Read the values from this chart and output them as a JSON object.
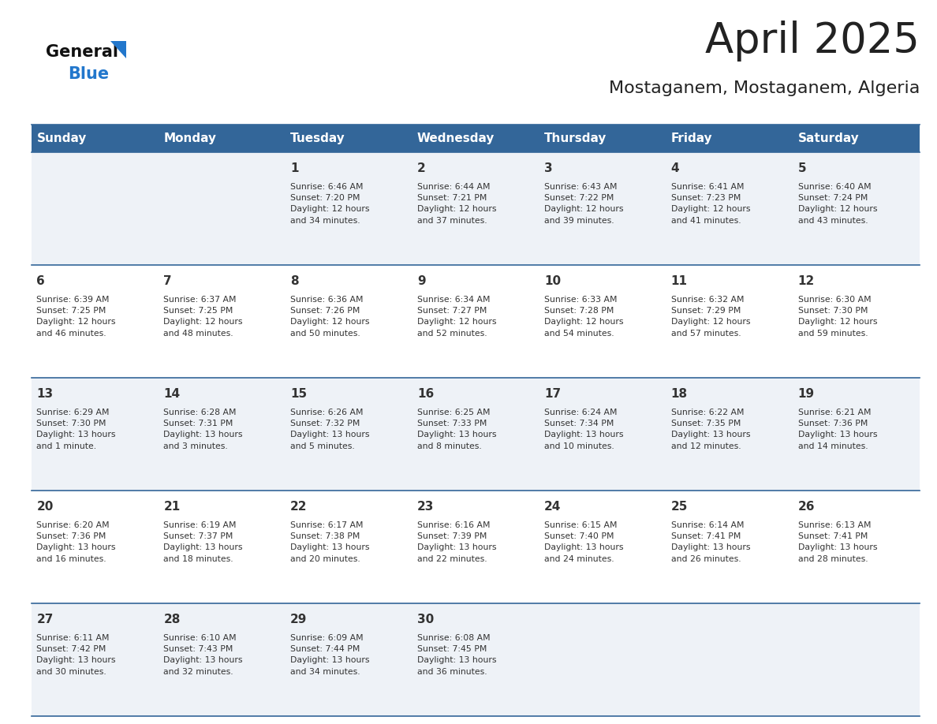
{
  "title": "April 2025",
  "subtitle": "Mostaganem, Mostaganem, Algeria",
  "days_of_week": [
    "Sunday",
    "Monday",
    "Tuesday",
    "Wednesday",
    "Thursday",
    "Friday",
    "Saturday"
  ],
  "header_bg": "#336699",
  "header_text_color": "#ffffff",
  "cell_bg_odd": "#eef2f7",
  "cell_bg_even": "#ffffff",
  "cell_text_color": "#333333",
  "day_num_color": "#333333",
  "grid_line_color": "#336699",
  "title_color": "#222222",
  "logo_general_color": "#111111",
  "logo_blue_color": "#2277cc",
  "weeks": [
    [
      {
        "day": null,
        "info": ""
      },
      {
        "day": null,
        "info": ""
      },
      {
        "day": 1,
        "info": "Sunrise: 6:46 AM\nSunset: 7:20 PM\nDaylight: 12 hours\nand 34 minutes."
      },
      {
        "day": 2,
        "info": "Sunrise: 6:44 AM\nSunset: 7:21 PM\nDaylight: 12 hours\nand 37 minutes."
      },
      {
        "day": 3,
        "info": "Sunrise: 6:43 AM\nSunset: 7:22 PM\nDaylight: 12 hours\nand 39 minutes."
      },
      {
        "day": 4,
        "info": "Sunrise: 6:41 AM\nSunset: 7:23 PM\nDaylight: 12 hours\nand 41 minutes."
      },
      {
        "day": 5,
        "info": "Sunrise: 6:40 AM\nSunset: 7:24 PM\nDaylight: 12 hours\nand 43 minutes."
      }
    ],
    [
      {
        "day": 6,
        "info": "Sunrise: 6:39 AM\nSunset: 7:25 PM\nDaylight: 12 hours\nand 46 minutes."
      },
      {
        "day": 7,
        "info": "Sunrise: 6:37 AM\nSunset: 7:25 PM\nDaylight: 12 hours\nand 48 minutes."
      },
      {
        "day": 8,
        "info": "Sunrise: 6:36 AM\nSunset: 7:26 PM\nDaylight: 12 hours\nand 50 minutes."
      },
      {
        "day": 9,
        "info": "Sunrise: 6:34 AM\nSunset: 7:27 PM\nDaylight: 12 hours\nand 52 minutes."
      },
      {
        "day": 10,
        "info": "Sunrise: 6:33 AM\nSunset: 7:28 PM\nDaylight: 12 hours\nand 54 minutes."
      },
      {
        "day": 11,
        "info": "Sunrise: 6:32 AM\nSunset: 7:29 PM\nDaylight: 12 hours\nand 57 minutes."
      },
      {
        "day": 12,
        "info": "Sunrise: 6:30 AM\nSunset: 7:30 PM\nDaylight: 12 hours\nand 59 minutes."
      }
    ],
    [
      {
        "day": 13,
        "info": "Sunrise: 6:29 AM\nSunset: 7:30 PM\nDaylight: 13 hours\nand 1 minute."
      },
      {
        "day": 14,
        "info": "Sunrise: 6:28 AM\nSunset: 7:31 PM\nDaylight: 13 hours\nand 3 minutes."
      },
      {
        "day": 15,
        "info": "Sunrise: 6:26 AM\nSunset: 7:32 PM\nDaylight: 13 hours\nand 5 minutes."
      },
      {
        "day": 16,
        "info": "Sunrise: 6:25 AM\nSunset: 7:33 PM\nDaylight: 13 hours\nand 8 minutes."
      },
      {
        "day": 17,
        "info": "Sunrise: 6:24 AM\nSunset: 7:34 PM\nDaylight: 13 hours\nand 10 minutes."
      },
      {
        "day": 18,
        "info": "Sunrise: 6:22 AM\nSunset: 7:35 PM\nDaylight: 13 hours\nand 12 minutes."
      },
      {
        "day": 19,
        "info": "Sunrise: 6:21 AM\nSunset: 7:36 PM\nDaylight: 13 hours\nand 14 minutes."
      }
    ],
    [
      {
        "day": 20,
        "info": "Sunrise: 6:20 AM\nSunset: 7:36 PM\nDaylight: 13 hours\nand 16 minutes."
      },
      {
        "day": 21,
        "info": "Sunrise: 6:19 AM\nSunset: 7:37 PM\nDaylight: 13 hours\nand 18 minutes."
      },
      {
        "day": 22,
        "info": "Sunrise: 6:17 AM\nSunset: 7:38 PM\nDaylight: 13 hours\nand 20 minutes."
      },
      {
        "day": 23,
        "info": "Sunrise: 6:16 AM\nSunset: 7:39 PM\nDaylight: 13 hours\nand 22 minutes."
      },
      {
        "day": 24,
        "info": "Sunrise: 6:15 AM\nSunset: 7:40 PM\nDaylight: 13 hours\nand 24 minutes."
      },
      {
        "day": 25,
        "info": "Sunrise: 6:14 AM\nSunset: 7:41 PM\nDaylight: 13 hours\nand 26 minutes."
      },
      {
        "day": 26,
        "info": "Sunrise: 6:13 AM\nSunset: 7:41 PM\nDaylight: 13 hours\nand 28 minutes."
      }
    ],
    [
      {
        "day": 27,
        "info": "Sunrise: 6:11 AM\nSunset: 7:42 PM\nDaylight: 13 hours\nand 30 minutes."
      },
      {
        "day": 28,
        "info": "Sunrise: 6:10 AM\nSunset: 7:43 PM\nDaylight: 13 hours\nand 32 minutes."
      },
      {
        "day": 29,
        "info": "Sunrise: 6:09 AM\nSunset: 7:44 PM\nDaylight: 13 hours\nand 34 minutes."
      },
      {
        "day": 30,
        "info": "Sunrise: 6:08 AM\nSunset: 7:45 PM\nDaylight: 13 hours\nand 36 minutes."
      },
      {
        "day": null,
        "info": ""
      },
      {
        "day": null,
        "info": ""
      },
      {
        "day": null,
        "info": ""
      }
    ]
  ],
  "figsize": [
    11.88,
    9.18
  ],
  "dpi": 100
}
